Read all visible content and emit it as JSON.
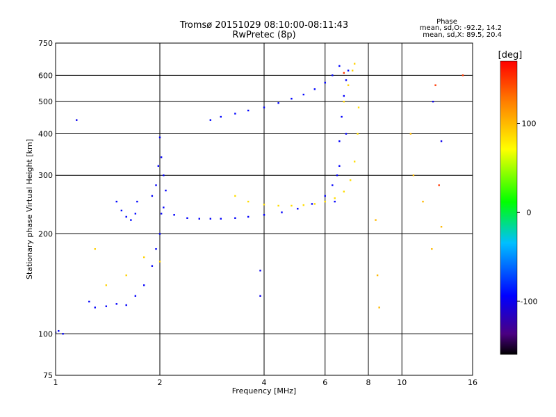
{
  "chart_data": {
    "type": "scatter",
    "title": "Tromsø 20151029 08:10:00-08:11:43",
    "subtitle": "RwPretec (8p)",
    "xlabel": "Frequency [MHz]",
    "ylabel": "Stationary phase Virtual Height [km]",
    "x_scale": "log",
    "y_scale": "log",
    "xlim": [
      1,
      16
    ],
    "ylim": [
      75,
      750
    ],
    "x_ticks": [
      1,
      2,
      4,
      6,
      8,
      10,
      16
    ],
    "y_ticks": [
      75,
      100,
      200,
      300,
      400,
      500,
      600,
      750
    ],
    "x_tick_labels": [
      "1",
      "2",
      "4",
      "6",
      "8",
      "10",
      "16"
    ],
    "y_tick_labels": [
      "75",
      "100",
      "200",
      "300",
      "400",
      "500",
      "600",
      "750"
    ],
    "grid": true,
    "colorbar": {
      "label": "[deg]",
      "min": -160,
      "max": 170,
      "ticks": [
        100,
        0,
        -100
      ],
      "tick_labels": [
        "100",
        "0",
        "-100"
      ]
    },
    "stats": {
      "heading": "Phase",
      "line_o": "mean, sd,O: -92.2, 14.2",
      "line_x": "mean, sd,X:  89.5, 20.4"
    },
    "traces": [
      {
        "name_hidden": "",
        "phase": -95,
        "x": [
          1.0,
          1.02,
          1.05
        ],
        "y": [
          101,
          102,
          100
        ]
      },
      {
        "phase": -95,
        "x": [
          1.25,
          1.3,
          1.4,
          1.5,
          1.6,
          1.7,
          1.8,
          1.9,
          1.95,
          2.0,
          2.02
        ],
        "y": [
          125,
          120,
          121,
          123,
          122,
          130,
          140,
          160,
          180,
          200,
          230
        ]
      },
      {
        "phase": -92,
        "x": [
          1.5,
          1.55,
          1.6,
          1.65,
          1.7,
          1.72
        ],
        "y": [
          250,
          235,
          225,
          220,
          230,
          250
        ]
      },
      {
        "phase": -95,
        "x": [
          1.9,
          1.95,
          1.98,
          2.0,
          2.02,
          2.05,
          2.08
        ],
        "y": [
          260,
          280,
          320,
          390,
          340,
          300,
          270
        ]
      },
      {
        "phase": -95,
        "x": [
          2.05,
          2.2,
          2.4,
          2.6,
          2.8,
          3.0,
          3.3,
          3.6,
          4.0,
          4.5,
          5.0,
          5.5,
          6.0,
          6.3,
          6.6,
          6.9
        ],
        "y": [
          240,
          228,
          223,
          222,
          222,
          222,
          223,
          225,
          228,
          232,
          238,
          246,
          260,
          280,
          320,
          400
        ]
      },
      {
        "phase": -95,
        "x": [
          6.4,
          6.5,
          6.6,
          6.7,
          6.8,
          6.9,
          7.0
        ],
        "y": [
          250,
          300,
          380,
          450,
          520,
          580,
          620
        ]
      },
      {
        "phase": -93,
        "x": [
          2.8,
          3.0,
          3.3,
          3.6,
          4.0,
          4.4,
          4.8,
          5.2,
          5.6,
          6.0,
          6.3,
          6.6
        ],
        "y": [
          440,
          450,
          460,
          470,
          480,
          495,
          510,
          525,
          545,
          570,
          600,
          640
        ]
      },
      {
        "phase": 85,
        "x": [
          3.3,
          3.6,
          4.0,
          4.4,
          4.8,
          5.2,
          5.6,
          6.0,
          6.4,
          6.8,
          7.1,
          7.3,
          7.45,
          7.5
        ],
        "y": [
          260,
          250,
          245,
          243,
          243,
          244,
          246,
          250,
          256,
          268,
          290,
          330,
          400,
          480
        ]
      },
      {
        "phase": 90,
        "x": [
          6.8,
          7.0,
          7.2,
          7.3
        ],
        "y": [
          500,
          560,
          620,
          650
        ]
      },
      {
        "phase": 90,
        "x": [
          1.3,
          1.4,
          1.6,
          1.8,
          2.0
        ],
        "y": [
          180,
          140,
          150,
          170,
          165
        ]
      },
      {
        "phase": 100,
        "x": [
          8.4,
          8.5,
          8.6,
          10.6,
          10.8,
          11.5,
          12.2,
          13.0
        ],
        "y": [
          220,
          150,
          120,
          400,
          300,
          250,
          180,
          210
        ]
      },
      {
        "phase": -100,
        "x": [
          3.9,
          3.9,
          1.15,
          12.3,
          13.0
        ],
        "y": [
          155,
          130,
          440,
          500,
          380
        ]
      },
      {
        "phase": 150,
        "x": [
          12.5,
          12.8,
          6.8,
          15.0
        ],
        "y": [
          560,
          280,
          610,
          600
        ]
      }
    ]
  }
}
